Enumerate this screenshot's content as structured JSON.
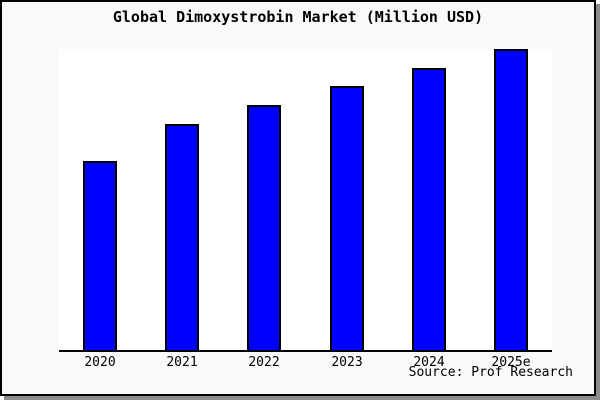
{
  "chart_data": {
    "type": "bar",
    "title": "Global Dimoxystrobin Market (Million USD)",
    "categories": [
      "2020",
      "2021",
      "2022",
      "2023",
      "2024",
      "2025e"
    ],
    "values": [
      62.8,
      75.1,
      81.4,
      87.7,
      93.7,
      100
    ],
    "values_note": "No y-axis scale is drawn in the chart; values are relative heights (percent of tallest 2025e bar) estimated from pixel measurements",
    "xlabel": "",
    "ylabel": "",
    "ylim": [
      0,
      100
    ],
    "grid": false,
    "legend": false,
    "y_axis_visible": false,
    "source": "Source: Prof Research",
    "colors": {
      "bar_fill": "#0000FF",
      "bar_border": "#000000",
      "axis": "#000000",
      "frame_border": "#000000",
      "frame_shadow": "#8C8C8C",
      "background": "#F9F9F9",
      "plot_background": "#FFFFFF",
      "text": "#000000"
    }
  }
}
